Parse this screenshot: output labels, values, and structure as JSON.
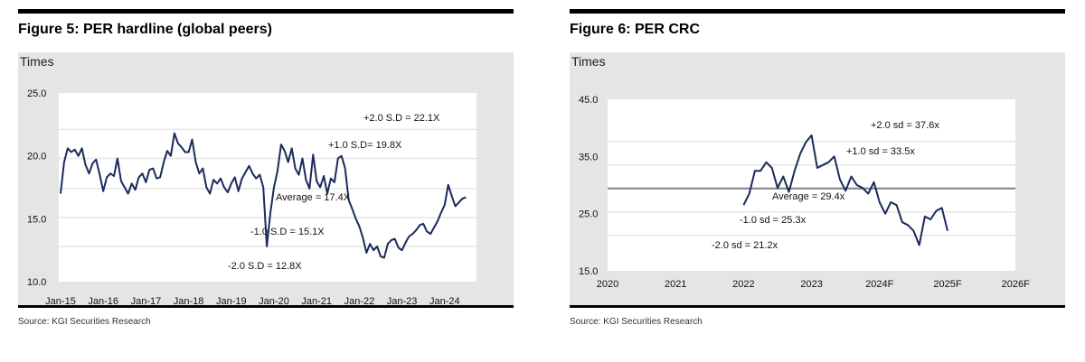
{
  "chart_data": [
    {
      "type": "line",
      "title": "Figure 5: PER hardline (global peers)",
      "ylabel": "Times",
      "ylim": [
        10,
        25
      ],
      "yticks": [
        "25.0",
        "20.0",
        "15.0",
        "10.0"
      ],
      "xticks": [
        "Jan-15",
        "Jan-16",
        "Jan-17",
        "Jan-18",
        "Jan-19",
        "Jan-20",
        "Jan-21",
        "Jan-22",
        "Jan-23",
        "Jan-24"
      ],
      "xlim": [
        "2015-01",
        "2024-09"
      ],
      "bands": [
        {
          "label": "+2.0 S.D = 22.1X",
          "value": 22.1
        },
        {
          "label": "+1.0 S.D= 19.8X",
          "value": 19.8
        },
        {
          "label": "Average = 17.4X",
          "value": 17.4
        },
        {
          "label": "-1.0 S.D = 15.1X",
          "value": 15.1
        },
        {
          "label": "-2.0 S.D = 12.8X",
          "value": 12.8
        }
      ],
      "grid": true,
      "line_color": "#1a2a5c",
      "start": "2015-01",
      "values": [
        17.0,
        19.5,
        20.6,
        20.3,
        20.5,
        20.0,
        20.6,
        19.3,
        18.6,
        19.4,
        19.7,
        18.5,
        17.2,
        18.3,
        18.6,
        18.4,
        19.8,
        18.0,
        17.5,
        17.0,
        17.8,
        17.3,
        18.3,
        18.6,
        17.9,
        18.9,
        19.0,
        18.2,
        18.3,
        19.5,
        20.4,
        20.0,
        21.8,
        21.0,
        20.7,
        20.3,
        20.3,
        21.3,
        19.5,
        18.6,
        19.0,
        17.5,
        17.0,
        18.1,
        17.8,
        18.2,
        17.5,
        17.1,
        17.8,
        18.3,
        17.2,
        18.2,
        18.7,
        19.2,
        18.6,
        18.2,
        18.5,
        17.5,
        12.8,
        15.5,
        17.5,
        18.8,
        20.9,
        20.4,
        19.5,
        20.6,
        19.0,
        18.5,
        19.8,
        18.1,
        17.4,
        20.1,
        18.0,
        17.5,
        18.4,
        17.0,
        18.2,
        17.9,
        19.8,
        20.0,
        19.0,
        16.5,
        15.8,
        15.0,
        14.4,
        13.5,
        12.3,
        13.0,
        12.5,
        12.8,
        12.0,
        11.9,
        13.0,
        13.3,
        13.4,
        12.7,
        12.5,
        13.1,
        13.6,
        13.8,
        14.1,
        14.5,
        14.6,
        14.0,
        13.8,
        14.3,
        14.8,
        15.5,
        16.1,
        17.7,
        16.8,
        16.0,
        16.3,
        16.6,
        16.7
      ]
    },
    {
      "type": "line",
      "title": "Figure 6: PER CRC",
      "ylabel": "Times",
      "ylim": [
        15,
        45
      ],
      "yticks": [
        "45.0",
        "35.0",
        "25.0",
        "15.0"
      ],
      "xticks": [
        "2020",
        "2021",
        "2022",
        "2023",
        "2024F",
        "2025F",
        "2026F"
      ],
      "xlim": [
        "2020-01",
        "2026-01"
      ],
      "bands": [
        {
          "label": "+2.0 sd = 37.6x",
          "value": 37.6
        },
        {
          "label": "+1.0 sd = 33.5x",
          "value": 33.5
        },
        {
          "label": "Average = 29.4x",
          "value": 29.4
        },
        {
          "label": "-1.0 sd = 25.3x",
          "value": 25.3
        },
        {
          "label": "-2.0 sd = 21.2x",
          "value": 21.2
        }
      ],
      "grid": true,
      "line_color": "#1a2a5c",
      "average_line_color": "#808080",
      "start": "2022-01",
      "values": [
        26.5,
        28.5,
        32.5,
        32.5,
        34.0,
        33.0,
        29.5,
        31.5,
        28.8,
        32.5,
        35.5,
        37.5,
        38.7,
        33.0,
        33.5,
        34.0,
        35.0,
        31.0,
        29.0,
        31.5,
        30.0,
        29.5,
        28.5,
        30.5,
        27.0,
        25.0,
        27.0,
        26.5,
        23.5,
        23.0,
        22.0,
        19.5,
        24.5,
        24.0,
        25.5,
        26.0,
        22.0
      ]
    }
  ],
  "source": [
    "Source: KGI Securities Research",
    "Source: KGI Securities Research"
  ]
}
